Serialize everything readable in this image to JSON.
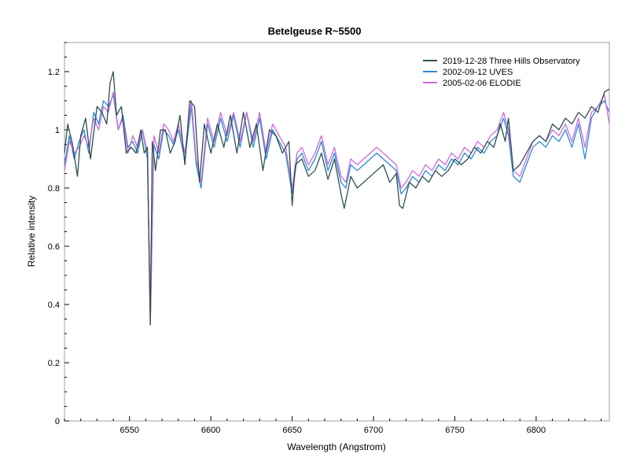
{
  "chart_data": {
    "type": "line",
    "title": "Betelgeuse  R~5500",
    "xlabel": "Wavelength (Angstrom)",
    "ylabel": "Relative intensity",
    "xlim": [
      6510,
      6845
    ],
    "ylim": [
      0,
      1.3
    ],
    "xticks": [
      6550,
      6600,
      6650,
      6700,
      6750,
      6800
    ],
    "xtick_labels": [
      "6550",
      "6600",
      "6650",
      "6700",
      "6750",
      "6800"
    ],
    "yticks": [
      0,
      0.2,
      0.4,
      0.6,
      0.8,
      1.0,
      1.2
    ],
    "ytick_labels": [
      "0",
      "0.2",
      "0.4",
      "0.6",
      "0.8",
      "1",
      "1.2"
    ],
    "grid": false,
    "legend_position": "top-right",
    "series": [
      {
        "name": "2019-12-28  Three Hills Observatory",
        "color": "#2f4f4f",
        "x": [
          6510,
          6512,
          6515,
          6518,
          6520,
          6523,
          6526,
          6530,
          6533,
          6536,
          6538,
          6540,
          6542,
          6545,
          6548,
          6551,
          6554,
          6557,
          6559,
          6561,
          6562.8,
          6564,
          6566,
          6569,
          6572,
          6575,
          6578,
          6581,
          6584,
          6587,
          6590,
          6593,
          6596,
          6600,
          6604,
          6608,
          6612,
          6616,
          6620,
          6624,
          6628,
          6632,
          6636,
          6640,
          6644,
          6648,
          6650,
          6652,
          6656,
          6660,
          6664,
          6668,
          6672,
          6676,
          6680,
          6682,
          6686,
          6690,
          6694,
          6698,
          6702,
          6706,
          6710,
          6714,
          6716,
          6718,
          6722,
          6726,
          6730,
          6734,
          6738,
          6742,
          6746,
          6750,
          6754,
          6758,
          6762,
          6766,
          6770,
          6774,
          6778,
          6781,
          6783,
          6786,
          6790,
          6794,
          6798,
          6802,
          6806,
          6810,
          6814,
          6818,
          6822,
          6826,
          6830,
          6834,
          6838,
          6842,
          6845
        ],
        "y": [
          0.92,
          1.02,
          0.95,
          0.84,
          0.98,
          1.04,
          0.9,
          1.08,
          1.06,
          1.02,
          1.16,
          1.2,
          1.05,
          1.08,
          0.92,
          0.94,
          0.92,
          1.0,
          0.92,
          0.94,
          0.33,
          0.96,
          0.86,
          1.0,
          1.0,
          0.92,
          0.96,
          1.05,
          0.88,
          1.1,
          1.08,
          0.82,
          1.02,
          0.92,
          1.02,
          0.94,
          1.05,
          0.92,
          1.06,
          0.94,
          1.02,
          0.86,
          1.0,
          0.98,
          0.92,
          0.96,
          0.74,
          0.88,
          0.9,
          0.84,
          0.86,
          0.92,
          0.83,
          0.9,
          0.78,
          0.73,
          0.84,
          0.8,
          0.82,
          0.84,
          0.86,
          0.88,
          0.82,
          0.85,
          0.74,
          0.73,
          0.82,
          0.8,
          0.84,
          0.82,
          0.86,
          0.84,
          0.86,
          0.9,
          0.88,
          0.9,
          0.94,
          0.92,
          0.96,
          0.94,
          1.02,
          0.96,
          1.04,
          0.86,
          0.88,
          0.92,
          0.96,
          0.98,
          0.96,
          1.02,
          1.0,
          1.04,
          1.02,
          1.06,
          1.04,
          1.08,
          1.06,
          1.13,
          1.14
        ]
      },
      {
        "name": "2002-09-12  UVES",
        "color": "#2b8ad6",
        "x": [
          6510,
          6513,
          6516,
          6519,
          6522,
          6525,
          6528,
          6531,
          6534,
          6537,
          6540,
          6543,
          6546,
          6549,
          6552,
          6555,
          6558,
          6561,
          6562.8,
          6565,
          6568,
          6571,
          6574,
          6577,
          6580,
          6584,
          6588,
          6591,
          6594,
          6598,
          6602,
          6606,
          6610,
          6614,
          6618,
          6622,
          6626,
          6630,
          6634,
          6638,
          6642,
          6646,
          6650,
          6653,
          6656,
          6660,
          6664,
          6668,
          6672,
          6676,
          6680,
          6683,
          6686,
          6690,
          6694,
          6698,
          6702,
          6706,
          6710,
          6714,
          6717,
          6720,
          6724,
          6728,
          6732,
          6736,
          6740,
          6744,
          6748,
          6752,
          6756,
          6760,
          6764,
          6768,
          6772,
          6776,
          6780,
          6783,
          6786,
          6790,
          6794,
          6798,
          6802,
          6806,
          6810,
          6814,
          6818,
          6822,
          6826,
          6830,
          6834,
          6838,
          6842,
          6845
        ],
        "y": [
          0.88,
          0.98,
          0.9,
          0.96,
          1.0,
          0.92,
          1.06,
          1.02,
          1.1,
          1.08,
          1.12,
          1.0,
          1.05,
          0.94,
          0.96,
          0.92,
          1.0,
          0.9,
          0.35,
          0.95,
          0.9,
          1.0,
          0.98,
          0.95,
          1.0,
          0.9,
          1.08,
          0.88,
          0.8,
          1.02,
          0.94,
          1.04,
          0.96,
          1.05,
          0.94,
          1.06,
          0.94,
          1.04,
          0.9,
          1.0,
          0.96,
          0.92,
          0.78,
          0.9,
          0.92,
          0.86,
          0.9,
          0.96,
          0.86,
          0.92,
          0.82,
          0.8,
          0.88,
          0.86,
          0.88,
          0.9,
          0.92,
          0.9,
          0.88,
          0.86,
          0.78,
          0.8,
          0.84,
          0.82,
          0.86,
          0.84,
          0.88,
          0.86,
          0.9,
          0.88,
          0.92,
          0.9,
          0.94,
          0.92,
          0.96,
          0.98,
          1.04,
          0.98,
          0.84,
          0.82,
          0.88,
          0.94,
          0.96,
          0.94,
          0.98,
          0.96,
          1.0,
          0.94,
          1.02,
          0.9,
          1.04,
          1.08,
          1.1,
          1.06
        ]
      },
      {
        "name": "2005-02-06  ELODIE",
        "color": "#c96bd9",
        "x": [
          6510,
          6513,
          6516,
          6519,
          6522,
          6525,
          6528,
          6531,
          6534,
          6537,
          6540,
          6543,
          6546,
          6549,
          6552,
          6555,
          6558,
          6561,
          6562.8,
          6565,
          6568,
          6571,
          6574,
          6577,
          6580,
          6584,
          6588,
          6591,
          6594,
          6598,
          6602,
          6606,
          6610,
          6614,
          6618,
          6622,
          6626,
          6630,
          6634,
          6638,
          6642,
          6646,
          6650,
          6653,
          6656,
          6660,
          6664,
          6668,
          6672,
          6676,
          6680,
          6683,
          6686,
          6690,
          6694,
          6698,
          6702,
          6706,
          6710,
          6714,
          6717,
          6720,
          6724,
          6728,
          6732,
          6736,
          6740,
          6744,
          6748,
          6752,
          6756,
          6760,
          6764,
          6768,
          6772,
          6776,
          6780,
          6783,
          6786,
          6790,
          6794,
          6798,
          6802,
          6806,
          6810,
          6814,
          6818,
          6822,
          6826,
          6830,
          6834,
          6838,
          6842,
          6845
        ],
        "y": [
          0.86,
          0.96,
          0.92,
          0.94,
          0.98,
          0.94,
          1.04,
          1.0,
          1.08,
          1.06,
          1.13,
          1.0,
          1.04,
          0.92,
          0.98,
          0.94,
          1.0,
          0.92,
          0.33,
          0.98,
          0.92,
          1.02,
          1.0,
          0.96,
          1.02,
          0.92,
          1.1,
          0.9,
          0.82,
          1.04,
          0.96,
          1.06,
          0.98,
          1.06,
          0.96,
          1.06,
          0.96,
          1.06,
          0.92,
          1.02,
          0.98,
          0.94,
          0.8,
          0.92,
          0.94,
          0.88,
          0.92,
          0.98,
          0.88,
          0.94,
          0.84,
          0.82,
          0.9,
          0.88,
          0.9,
          0.92,
          0.94,
          0.92,
          0.9,
          0.88,
          0.8,
          0.82,
          0.86,
          0.84,
          0.88,
          0.86,
          0.9,
          0.88,
          0.92,
          0.9,
          0.94,
          0.92,
          0.96,
          0.94,
          0.98,
          1.0,
          1.06,
          1.0,
          0.86,
          0.84,
          0.9,
          0.96,
          0.98,
          0.96,
          1.0,
          0.98,
          1.02,
          0.96,
          1.04,
          0.94,
          1.06,
          1.08,
          1.12,
          1.02
        ]
      }
    ]
  }
}
